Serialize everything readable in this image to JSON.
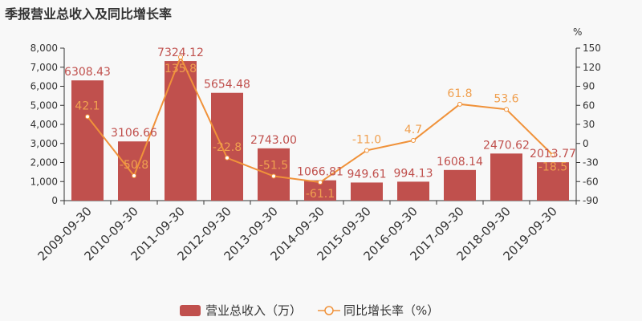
{
  "title": "季报营业总收入及同比增长率",
  "chart_data": {
    "type": "bar+line",
    "categories": [
      "2009-09-30",
      "2010-09-30",
      "2011-09-30",
      "2012-09-30",
      "2013-09-30",
      "2014-09-30",
      "2015-09-30",
      "2016-09-30",
      "2017-09-30",
      "2018-09-30",
      "2019-09-30"
    ],
    "series": [
      {
        "name": "营业总收入（万）",
        "type": "bar",
        "axis": "left",
        "color": "#c0504d",
        "values": [
          6308.43,
          3106.66,
          7324.12,
          5654.48,
          2743.0,
          1066.81,
          949.61,
          994.13,
          1608.14,
          2470.62,
          2013.77
        ],
        "labels": [
          "6308.43",
          "3106.66",
          "7324.12",
          "5654.48",
          "2743.00",
          "1066.81",
          "949.61",
          "994.13",
          "1608.14",
          "2470.62",
          "2013.77"
        ]
      },
      {
        "name": "同比增长率（%）",
        "type": "line",
        "axis": "right",
        "color": "#f0923a",
        "values": [
          42.1,
          -50.8,
          135.8,
          -22.8,
          -51.5,
          -61.1,
          -11.0,
          4.7,
          61.8,
          53.6,
          -18.5
        ],
        "labels": [
          "42.1",
          "-50.8",
          "135.8",
          "-22.8",
          "-51.5",
          "-61.1",
          "-11.0",
          "4.7",
          "61.8",
          "53.6",
          "-18.5"
        ]
      }
    ],
    "y_left": {
      "range": [
        0,
        8000
      ],
      "ticks": [
        "0",
        "1,000",
        "2,000",
        "3,000",
        "4,000",
        "5,000",
        "6,000",
        "7,000",
        "8,000"
      ]
    },
    "y_right": {
      "label": "%",
      "range": [
        -90,
        150
      ],
      "ticks": [
        "-90",
        "-60",
        "-30",
        "0",
        "30",
        "60",
        "90",
        "120",
        "150"
      ]
    },
    "grid": false,
    "legend_position": "bottom"
  }
}
